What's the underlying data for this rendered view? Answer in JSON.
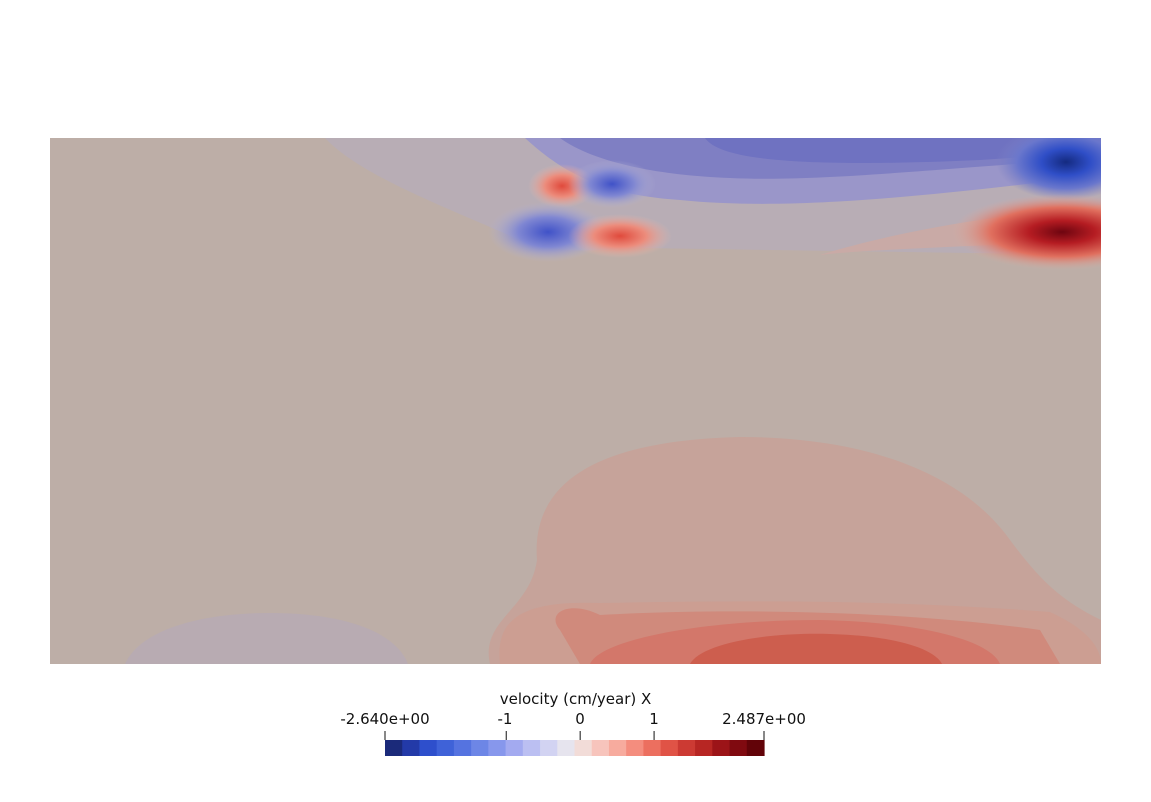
{
  "colorbar": {
    "title": "velocity (cm/year) X",
    "range": [
      -2.64,
      2.487
    ],
    "ticks": [
      {
        "value": -2.64,
        "label": "-2.640e+00"
      },
      {
        "value": -1,
        "label": "-1"
      },
      {
        "value": 0,
        "label": "0"
      },
      {
        "value": 1,
        "label": "1"
      },
      {
        "value": 2.487,
        "label": "2.487e+00"
      }
    ],
    "colors": [
      "#1b2a7a",
      "#233aa8",
      "#2e4fcc",
      "#3f62d8",
      "#5573e0",
      "#6d86e6",
      "#8797ec",
      "#a3aaf0",
      "#bbbff2",
      "#d2d3f2",
      "#e6e4ee",
      "#f2dcd8",
      "#f7c4bc",
      "#f7ab9e",
      "#f48d7e",
      "#ec6f5f",
      "#e05346",
      "#cc3a33",
      "#b72623",
      "#9c1418",
      "#800a10",
      "#620308"
    ],
    "background_color": "#bdaea7"
  }
}
